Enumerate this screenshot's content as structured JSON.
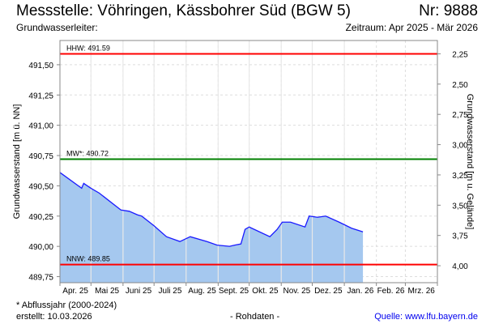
{
  "header": {
    "title": "Messstelle: Vöhringen, Kässbohrer Süd (BGW 5)",
    "number": "Nr: 9888",
    "aquifer": "Grundwasserleiter:",
    "period": "Zeitraum: Apr 2025 - Mär 2026"
  },
  "footer": {
    "note": "* Abflussjahr (2000-2024)",
    "created": "erstellt:  10.03.2026",
    "raw": "- Rohdaten -",
    "source": "Quelle: www.lfu.bayern.de"
  },
  "chart_data": {
    "type": "area",
    "ylabel": "Grundwasserstand [m ü. NN]",
    "ylabel_right": "Grundwasserstand [m u. Gelände]",
    "ylim": [
      489.7,
      491.7
    ],
    "ground_level": 493.84,
    "xlim": [
      "2025-04-01",
      "2026-03-31"
    ],
    "yticks": [
      "489,75",
      "490,00",
      "490,25",
      "490,50",
      "490,75",
      "491,00",
      "491,25",
      "491,50"
    ],
    "ytick_values": [
      489.75,
      490.0,
      490.25,
      490.5,
      490.75,
      491.0,
      491.25,
      491.5
    ],
    "yticks_right": [
      "2,25",
      "2,50",
      "2,75",
      "3,00",
      "3,25",
      "3,50",
      "3,75",
      "4,00"
    ],
    "ytick_right_values": [
      2.25,
      2.5,
      2.75,
      3.0,
      3.25,
      3.5,
      3.75,
      4.0
    ],
    "xticks": [
      "Apr. 25",
      "Mai 25",
      "Juni 25",
      "Juli 25",
      "Aug. 25",
      "Sept. 25",
      "Okt. 25",
      "Nov. 25",
      "Dez. 25",
      "Jan. 26",
      "Feb. 26",
      "Mrz. 26"
    ],
    "grid": true,
    "colors": {
      "fill": "#a5c8ef",
      "line": "#1a1aff",
      "hhw": "#ff0000",
      "mw": "#008000",
      "nnw": "#ff0000"
    },
    "reference_lines": [
      {
        "label": "HHW: 491.59",
        "value": 491.59,
        "color": "#ff0000"
      },
      {
        "label": "MW*: 490.72",
        "value": 490.72,
        "color": "#008000"
      },
      {
        "label": "NNW: 489.85",
        "value": 489.85,
        "color": "#ff0000"
      }
    ],
    "series": [
      {
        "x": [
          "2025-04-01",
          "2025-04-22",
          "2025-04-24",
          "2025-05-01",
          "2025-05-09",
          "2025-05-30",
          "2025-06-07",
          "2025-06-15",
          "2025-06-19",
          "2025-07-01",
          "2025-07-13",
          "2025-07-26",
          "2025-08-05",
          "2025-08-21",
          "2025-08-31",
          "2025-09-12",
          "2025-09-17",
          "2025-09-23",
          "2025-09-27",
          "2025-10-01",
          "2025-10-21",
          "2025-10-28",
          "2025-11-02",
          "2025-11-10",
          "2025-11-24",
          "2025-11-28",
          "2025-12-06",
          "2025-12-14",
          "2025-12-27",
          "2026-01-08",
          "2026-01-19"
        ],
        "y": [
          490.61,
          490.48,
          490.52,
          490.48,
          490.44,
          490.3,
          490.29,
          490.26,
          490.25,
          490.17,
          490.08,
          490.04,
          490.08,
          490.04,
          490.01,
          490.0,
          490.01,
          490.02,
          490.14,
          490.16,
          490.08,
          490.14,
          490.2,
          490.2,
          490.16,
          490.25,
          490.24,
          490.25,
          490.2,
          490.15,
          490.12
        ]
      }
    ]
  }
}
